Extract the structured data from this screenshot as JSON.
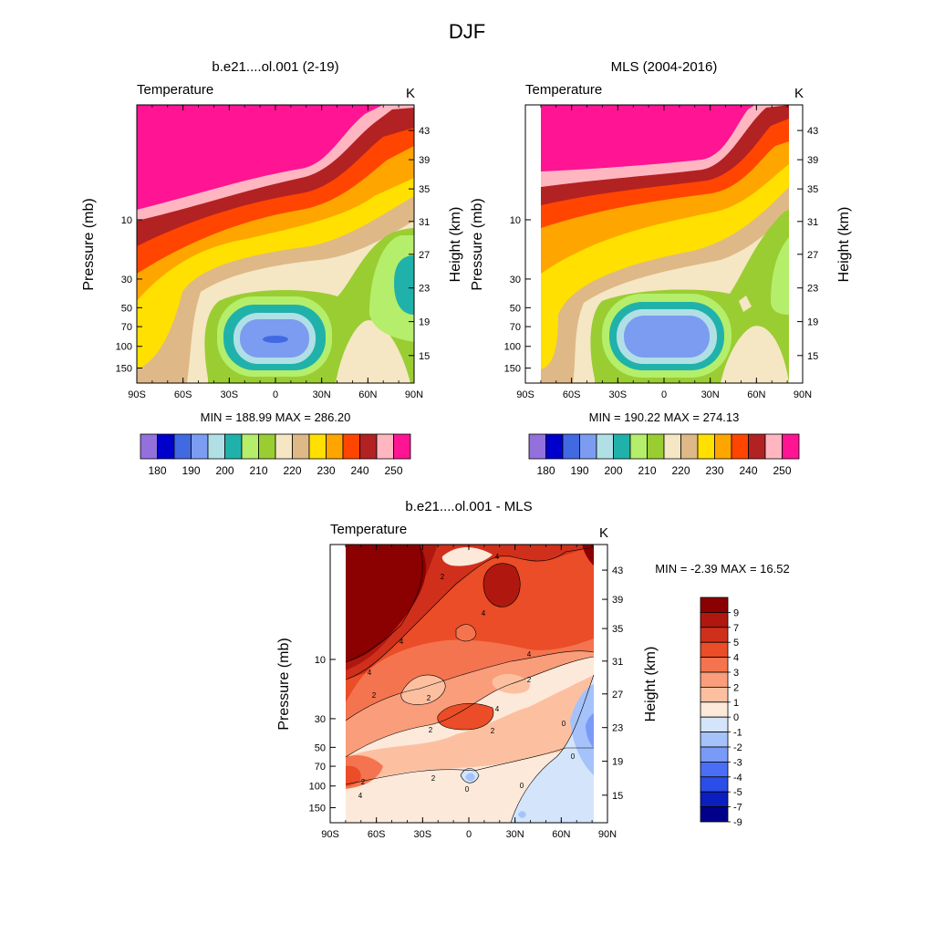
{
  "figure": {
    "title": "DJF"
  },
  "palette": {
    "abs": [
      "#9370db",
      "#0000cd",
      "#4169e1",
      "#7b9cf0",
      "#b0e0e6",
      "#20b2aa",
      "#b4ee6b",
      "#9acd32",
      "#f5e6c4",
      "#deb887",
      "#ffe000",
      "#ffa500",
      "#ff4500",
      "#b22222",
      "#ffb6c1",
      "#ff1493"
    ],
    "diff": [
      "#00008b",
      "#0b1fc0",
      "#2b4de8",
      "#4a6ef5",
      "#7a9af8",
      "#a6c2fa",
      "#d4e5fb",
      "#fde9da",
      "#fcc0a1",
      "#f99d7a",
      "#f4744f",
      "#ea4d27",
      "#d0301b",
      "#b0180f",
      "#8b0000"
    ]
  },
  "chart_data": [
    {
      "type": "contour",
      "name": "model",
      "title": "b.e21....ol.001 (2-19)",
      "variable": "Temperature",
      "units": "K",
      "ylabel": "Pressure (mb)",
      "ylabel_right": "Height (km)",
      "xticks": [
        "90S",
        "60S",
        "30S",
        "0",
        "30N",
        "60N",
        "90N"
      ],
      "yticks_left": [
        "10",
        "30",
        "50",
        "70",
        "100",
        "150"
      ],
      "yticks_right": [
        "43",
        "39",
        "35",
        "31",
        "27",
        "23",
        "19",
        "15"
      ],
      "levels": [
        180,
        185,
        190,
        195,
        200,
        205,
        210,
        215,
        220,
        225,
        230,
        235,
        240,
        245,
        250
      ],
      "colorbar_labels": [
        "180",
        "190",
        "200",
        "210",
        "220",
        "230",
        "240",
        "250"
      ],
      "min_max": "MIN = 188.99  MAX = 286.20"
    },
    {
      "type": "contour",
      "name": "obs",
      "title": "MLS (2004-2016)",
      "variable": "Temperature",
      "units": "K",
      "ylabel": "Pressure (mb)",
      "ylabel_right": "Height (km)",
      "xticks": [
        "90S",
        "60S",
        "30S",
        "0",
        "30N",
        "60N",
        "90N"
      ],
      "yticks_left": [
        "10",
        "30",
        "50",
        "70",
        "100",
        "150"
      ],
      "yticks_right": [
        "43",
        "39",
        "35",
        "31",
        "27",
        "23",
        "19",
        "15"
      ],
      "levels": [
        180,
        185,
        190,
        195,
        200,
        205,
        210,
        215,
        220,
        225,
        230,
        235,
        240,
        245,
        250
      ],
      "colorbar_labels": [
        "180",
        "190",
        "200",
        "210",
        "220",
        "230",
        "240",
        "250"
      ],
      "min_max": "MIN = 190.22  MAX = 274.13"
    },
    {
      "type": "contour",
      "name": "diff",
      "title": "b.e21....ol.001 - MLS",
      "variable": "Temperature",
      "units": "K",
      "ylabel": "Pressure (mb)",
      "ylabel_right": "Height (km)",
      "xticks": [
        "90S",
        "60S",
        "30S",
        "0",
        "30N",
        "60N",
        "90N"
      ],
      "yticks_left": [
        "10",
        "30",
        "50",
        "70",
        "100",
        "150"
      ],
      "yticks_right": [
        "43",
        "39",
        "35",
        "31",
        "27",
        "23",
        "19",
        "15"
      ],
      "levels": [
        -9,
        -7,
        -5,
        -4,
        -3,
        -2,
        -1,
        0,
        1,
        2,
        3,
        4,
        5,
        7,
        9
      ],
      "colorbar_labels": [
        "9",
        "7",
        "5",
        "4",
        "3",
        "2",
        "1",
        "0",
        "-1",
        "-2",
        "-3",
        "-4",
        "-5",
        "-7",
        "-9"
      ],
      "line_labels": [
        "2",
        "2",
        "2",
        "4",
        "4",
        "4",
        "4",
        "4",
        "2",
        "2",
        "2",
        "2",
        "4",
        "2",
        "0",
        "0",
        "0",
        "0",
        "4"
      ],
      "min_max": "MIN =  -2.39  MAX =  16.52"
    }
  ]
}
